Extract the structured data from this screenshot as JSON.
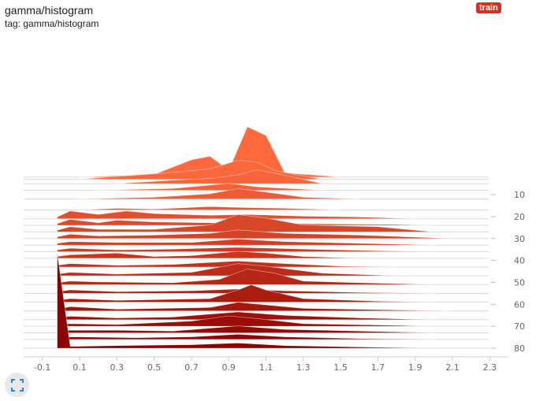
{
  "card": {
    "title": "gamma/histogram",
    "tag": "tag: gamma/histogram",
    "run": "train",
    "run_color": "#d5311e"
  },
  "icons": {
    "expand": "fullscreen-icon"
  },
  "chart_data": {
    "type": "ridgeline-histogram",
    "xlim": [
      -0.2,
      2.4
    ],
    "x_ticks": [
      -0.1,
      0.1,
      0.3,
      0.5,
      0.7,
      0.9,
      1.1,
      1.3,
      1.5,
      1.7,
      1.9,
      2.1,
      2.3
    ],
    "step_ticks": [
      10,
      20,
      30,
      40,
      50,
      60,
      70,
      80
    ],
    "step_range": [
      1,
      80
    ],
    "colors": {
      "first_step": "#ff6a3d",
      "last_step": "#8b0000"
    },
    "series": [
      {
        "step": 2,
        "points": [
          [
            0.1,
            0
          ],
          [
            0.5,
            3
          ],
          [
            0.7,
            20
          ],
          [
            0.8,
            24
          ],
          [
            0.9,
            8
          ],
          [
            1.0,
            58
          ],
          [
            1.1,
            48
          ],
          [
            1.2,
            5
          ],
          [
            1.5,
            0
          ]
        ]
      },
      {
        "step": 3,
        "points": [
          [
            0.1,
            0
          ],
          [
            0.6,
            8
          ],
          [
            0.8,
            12
          ],
          [
            0.95,
            22
          ],
          [
            1.05,
            20
          ],
          [
            1.15,
            10
          ],
          [
            1.4,
            0
          ]
        ]
      },
      {
        "step": 5,
        "points": [
          [
            0.3,
            0
          ],
          [
            0.6,
            4
          ],
          [
            0.8,
            6
          ],
          [
            0.95,
            10
          ],
          [
            1.05,
            16
          ],
          [
            1.15,
            12
          ],
          [
            1.4,
            0
          ]
        ]
      },
      {
        "step": 8,
        "points": [
          [
            0.2,
            0
          ],
          [
            0.6,
            2
          ],
          [
            0.9,
            8
          ],
          [
            1.05,
            4
          ],
          [
            1.4,
            0
          ]
        ]
      },
      {
        "step": 12,
        "points": [
          [
            0.1,
            0
          ],
          [
            0.5,
            2
          ],
          [
            0.8,
            6
          ],
          [
            0.95,
            12
          ],
          [
            1.1,
            8
          ],
          [
            1.3,
            2
          ],
          [
            1.6,
            0
          ]
        ]
      },
      {
        "step": 17,
        "points": [
          [
            0.1,
            0
          ],
          [
            0.3,
            2
          ],
          [
            0.5,
            1
          ],
          [
            0.8,
            4
          ],
          [
            0.95,
            3
          ],
          [
            1.2,
            2
          ],
          [
            1.5,
            0
          ]
        ]
      },
      {
        "step": 21,
        "points": [
          [
            -0.02,
            2
          ],
          [
            0.05,
            9
          ],
          [
            0.2,
            5
          ],
          [
            0.35,
            9
          ],
          [
            0.5,
            6
          ],
          [
            0.8,
            4
          ],
          [
            1.0,
            5
          ],
          [
            1.3,
            3
          ],
          [
            1.6,
            2
          ],
          [
            1.9,
            0
          ]
        ]
      },
      {
        "step": 24,
        "points": [
          [
            -0.02,
            2
          ],
          [
            0.05,
            7
          ],
          [
            0.2,
            3
          ],
          [
            0.3,
            6
          ],
          [
            0.5,
            4
          ],
          [
            0.8,
            3
          ],
          [
            1.2,
            2
          ],
          [
            1.8,
            1
          ],
          [
            2.0,
            0
          ]
        ]
      },
      {
        "step": 27,
        "points": [
          [
            -0.02,
            2
          ],
          [
            0.05,
            6
          ],
          [
            0.2,
            3
          ],
          [
            0.5,
            3
          ],
          [
            0.8,
            8
          ],
          [
            0.95,
            20
          ],
          [
            1.1,
            16
          ],
          [
            1.3,
            8
          ],
          [
            1.7,
            6
          ],
          [
            2.0,
            0
          ]
        ]
      },
      {
        "step": 30,
        "points": [
          [
            -0.02,
            2
          ],
          [
            0.05,
            5
          ],
          [
            0.2,
            3
          ],
          [
            0.5,
            4
          ],
          [
            0.8,
            6
          ],
          [
            0.95,
            10
          ],
          [
            1.2,
            6
          ],
          [
            1.6,
            4
          ],
          [
            2.1,
            0
          ]
        ]
      },
      {
        "step": 33,
        "points": [
          [
            -0.02,
            2
          ],
          [
            0.05,
            4
          ],
          [
            0.3,
            3
          ],
          [
            0.7,
            3
          ],
          [
            0.95,
            7
          ],
          [
            1.2,
            4
          ],
          [
            1.6,
            2
          ],
          [
            2.0,
            0
          ]
        ]
      },
      {
        "step": 36,
        "points": [
          [
            -0.02,
            2
          ],
          [
            0.05,
            4
          ],
          [
            0.3,
            2
          ],
          [
            0.6,
            3
          ],
          [
            0.95,
            5
          ],
          [
            1.3,
            3
          ],
          [
            1.7,
            1
          ],
          [
            2.0,
            0
          ]
        ]
      },
      {
        "step": 39,
        "points": [
          [
            -0.02,
            2
          ],
          [
            0.05,
            4
          ],
          [
            0.3,
            6
          ],
          [
            0.5,
            2
          ],
          [
            0.7,
            3
          ],
          [
            0.95,
            8
          ],
          [
            1.1,
            6
          ],
          [
            1.3,
            2
          ],
          [
            1.6,
            0
          ]
        ]
      },
      {
        "step": 43,
        "points": [
          [
            -0.02,
            2
          ],
          [
            0.05,
            4
          ],
          [
            0.3,
            2
          ],
          [
            0.6,
            3
          ],
          [
            0.95,
            7
          ],
          [
            1.2,
            4
          ],
          [
            1.5,
            1
          ],
          [
            1.8,
            0
          ]
        ]
      },
      {
        "step": 47,
        "points": [
          [
            -0.02,
            2
          ],
          [
            0.05,
            4
          ],
          [
            0.3,
            2
          ],
          [
            0.7,
            4
          ],
          [
            0.95,
            14
          ],
          [
            1.1,
            11
          ],
          [
            1.4,
            3
          ],
          [
            1.8,
            0
          ]
        ]
      },
      {
        "step": 51,
        "points": [
          [
            -0.02,
            2
          ],
          [
            0.05,
            4
          ],
          [
            0.2,
            3
          ],
          [
            0.6,
            2
          ],
          [
            0.85,
            6
          ],
          [
            1.0,
            18
          ],
          [
            1.15,
            13
          ],
          [
            1.3,
            4
          ],
          [
            1.6,
            2
          ],
          [
            2.0,
            0
          ]
        ]
      },
      {
        "step": 55,
        "points": [
          [
            -0.02,
            2
          ],
          [
            0.05,
            4
          ],
          [
            0.3,
            2
          ],
          [
            0.7,
            3
          ],
          [
            0.95,
            5
          ],
          [
            1.2,
            3
          ],
          [
            1.6,
            1
          ],
          [
            2.0,
            0
          ]
        ]
      },
      {
        "step": 59,
        "points": [
          [
            -0.02,
            2
          ],
          [
            0.05,
            4
          ],
          [
            0.3,
            2
          ],
          [
            0.8,
            4
          ],
          [
            0.95,
            14
          ],
          [
            1.02,
            20
          ],
          [
            1.1,
            14
          ],
          [
            1.3,
            4
          ],
          [
            1.7,
            1
          ],
          [
            2.0,
            0
          ]
        ]
      },
      {
        "step": 63,
        "points": [
          [
            -0.02,
            2
          ],
          [
            0.05,
            5
          ],
          [
            0.3,
            2
          ],
          [
            0.8,
            4
          ],
          [
            0.95,
            10
          ],
          [
            1.05,
            8
          ],
          [
            1.3,
            3
          ],
          [
            1.8,
            1
          ],
          [
            2.1,
            0
          ]
        ]
      },
      {
        "step": 67,
        "points": [
          [
            -0.02,
            2
          ],
          [
            0.05,
            4
          ],
          [
            0.3,
            2
          ],
          [
            0.6,
            3
          ],
          [
            0.95,
            9
          ],
          [
            1.2,
            5
          ],
          [
            1.6,
            2
          ],
          [
            2.0,
            0
          ]
        ]
      },
      {
        "step": 70,
        "points": [
          [
            -0.02,
            2
          ],
          [
            0.05,
            3
          ],
          [
            0.3,
            2
          ],
          [
            0.7,
            6
          ],
          [
            0.9,
            12
          ],
          [
            1.05,
            9
          ],
          [
            1.3,
            3
          ],
          [
            1.8,
            1
          ],
          [
            2.0,
            0
          ]
        ]
      },
      {
        "step": 73,
        "points": [
          [
            -0.02,
            2
          ],
          [
            0.05,
            3
          ],
          [
            0.3,
            3
          ],
          [
            0.6,
            2
          ],
          [
            0.95,
            8
          ],
          [
            1.2,
            4
          ],
          [
            1.8,
            1
          ],
          [
            2.0,
            0
          ]
        ]
      },
      {
        "step": 76,
        "points": [
          [
            -0.02,
            2
          ],
          [
            0.05,
            3
          ],
          [
            0.4,
            2
          ],
          [
            0.7,
            3
          ],
          [
            0.95,
            6
          ],
          [
            1.2,
            3
          ],
          [
            1.6,
            1
          ],
          [
            2.0,
            0
          ]
        ]
      },
      {
        "step": 80,
        "points": [
          [
            -0.02,
            110
          ],
          [
            0.05,
            2
          ],
          [
            0.3,
            3
          ],
          [
            0.7,
            4
          ],
          [
            0.95,
            6
          ],
          [
            1.2,
            3
          ],
          [
            1.7,
            1
          ],
          [
            2.0,
            0
          ]
        ]
      }
    ]
  }
}
